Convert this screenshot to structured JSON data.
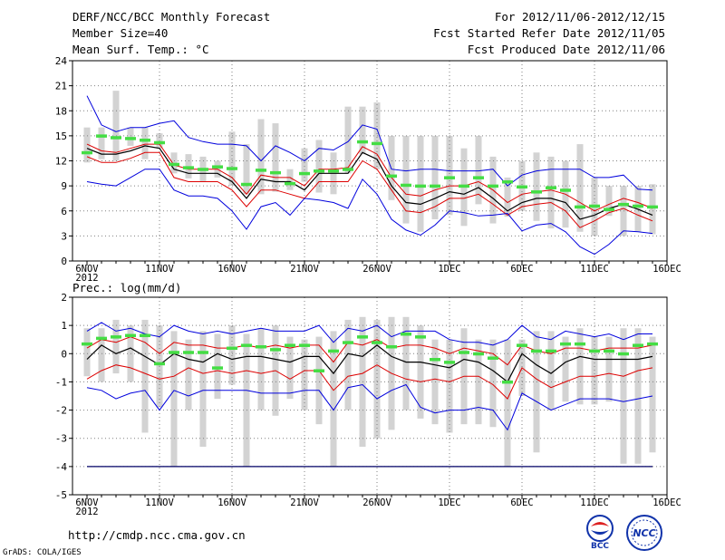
{
  "header": {
    "title": "DERF/NCC/BCC Monthly Forecast",
    "member_size": "Member Size=40",
    "variable": "Mean Surf. Temp.: °C",
    "period": "For 2012/11/06-2012/12/15",
    "started": "Fcst Started Refer Date 2012/11/05",
    "produced": "Fcst Produced Date 2012/11/06"
  },
  "footer": {
    "url": "http://cmdp.ncc.cma.gov.cn",
    "grads": "GrADS: COLA/IGES",
    "logo_left": "BCC",
    "logo_right": "NCC"
  },
  "colors": {
    "bar": "#d3d3d3",
    "obs": "#44dd44",
    "mean": "#000000",
    "inner": "#dd0000",
    "outer": "#0000dd",
    "floor": "#000066",
    "grid": "#808080"
  },
  "chart_data": [
    {
      "type": "line",
      "title": "Mean Surf. Temp.: °C",
      "ylim": [
        0,
        24
      ],
      "yticks": [
        0,
        3,
        6,
        9,
        12,
        15,
        18,
        21,
        24
      ],
      "xlabels": [
        "6NOV",
        "11NOV",
        "16NOV",
        "21NOV",
        "26NOV",
        "1DEC",
        "6DEC",
        "11DEC",
        "16DEC"
      ],
      "year_label": "2012",
      "days": 40,
      "series": [
        {
          "name": "max",
          "values": [
            19.8,
            16.3,
            15.5,
            16.0,
            16.0,
            16.5,
            16.8,
            14.8,
            14.3,
            14.0,
            14.0,
            13.8,
            12.0,
            13.8,
            13.0,
            12.0,
            13.5,
            13.3,
            14.3,
            16.3,
            15.8,
            11.0,
            10.8,
            11.0,
            11.0,
            10.8,
            10.8,
            10.8,
            11.0,
            9.0,
            10.3,
            10.8,
            11.0,
            11.0,
            11.0,
            10.0,
            10.0,
            10.3,
            8.6,
            8.5
          ]
        },
        {
          "name": "upper",
          "values": [
            14.0,
            13.2,
            13.0,
            13.5,
            14.0,
            14.0,
            11.5,
            11.0,
            11.0,
            11.0,
            10.0,
            8.0,
            10.3,
            10.0,
            10.0,
            9.0,
            11.0,
            11.0,
            11.2,
            13.7,
            12.8,
            10.0,
            8.0,
            7.8,
            8.5,
            9.0,
            9.0,
            9.5,
            8.5,
            7.0,
            8.0,
            8.3,
            8.5,
            8.0,
            7.0,
            6.0,
            6.8,
            7.5,
            7.0,
            6.3
          ]
        },
        {
          "name": "mean",
          "values": [
            13.5,
            12.8,
            12.8,
            13.2,
            13.8,
            13.5,
            11.0,
            10.5,
            10.5,
            10.5,
            9.5,
            7.5,
            9.8,
            9.5,
            9.5,
            8.5,
            10.5,
            10.5,
            10.5,
            13.0,
            12.2,
            9.0,
            7.0,
            6.8,
            7.5,
            8.3,
            8.0,
            8.8,
            7.5,
            6.0,
            7.0,
            7.5,
            7.5,
            7.0,
            5.0,
            5.5,
            6.3,
            6.8,
            6.2,
            5.5
          ]
        },
        {
          "name": "lower",
          "values": [
            12.5,
            11.8,
            11.8,
            12.3,
            13.0,
            13.0,
            10.0,
            9.5,
            9.5,
            9.5,
            8.5,
            6.5,
            8.5,
            8.5,
            8.0,
            7.5,
            9.5,
            9.5,
            9.5,
            12.0,
            11.0,
            8.5,
            6.0,
            5.8,
            6.5,
            7.5,
            7.5,
            8.0,
            6.8,
            5.5,
            6.5,
            6.8,
            7.0,
            6.0,
            4.0,
            4.8,
            5.8,
            6.3,
            5.5,
            4.8
          ]
        },
        {
          "name": "min",
          "values": [
            9.5,
            9.2,
            9.0,
            10.0,
            11.0,
            11.0,
            8.5,
            7.8,
            7.8,
            7.5,
            6.0,
            3.8,
            6.5,
            7.0,
            5.5,
            7.5,
            7.3,
            7.0,
            6.3,
            9.8,
            8.0,
            5.0,
            3.7,
            3.1,
            4.3,
            6.0,
            5.8,
            5.4,
            5.5,
            5.7,
            3.6,
            4.3,
            4.5,
            3.5,
            1.7,
            0.8,
            2.0,
            3.6,
            3.5,
            3.3
          ]
        },
        {
          "name": "observed",
          "values": [
            13.0,
            15.0,
            14.8,
            14.7,
            14.5,
            14.2,
            11.6,
            11.2,
            11.0,
            11.3,
            11.1,
            9.2,
            10.9,
            10.6,
            9.3,
            10.5,
            10.8,
            10.8,
            11.0,
            14.3,
            14.1,
            10.2,
            9.1,
            9.0,
            9.0,
            10.0,
            9.0,
            10.0,
            9.0,
            9.5,
            8.9,
            8.3,
            8.8,
            8.5,
            6.5,
            6.6,
            6.2,
            6.8,
            6.6,
            6.5
          ]
        }
      ],
      "bars": {
        "bottom": [
          11.8,
          12.2,
          12.0,
          13.8,
          12.2,
          13.5,
          10.5,
          9.9,
          9.5,
          10.0,
          9.0,
          8.0,
          8.0,
          8.3,
          8.5,
          9.5,
          8.2,
          8.0,
          10.5,
          12.8,
          11.0,
          7.3,
          4.5,
          3.5,
          5.0,
          5.5,
          4.2,
          6.8,
          4.5,
          5.3,
          6.0,
          4.8,
          3.9,
          4.0,
          3.5,
          3.0,
          5.4,
          3.0,
          3.5,
          3.2
        ],
        "top": [
          16.0,
          16.0,
          20.4,
          16.0,
          16.0,
          15.3,
          13.0,
          12.8,
          12.5,
          12.0,
          15.5,
          14.0,
          17.0,
          16.5,
          11.0,
          13.5,
          14.5,
          13.0,
          18.5,
          18.5,
          19.0,
          15.0,
          15.0,
          15.0,
          15.0,
          15.0,
          13.5,
          15.0,
          12.5,
          10.0,
          12.0,
          13.0,
          12.5,
          12.0,
          14.0,
          10.0,
          9.0,
          9.0,
          9.0,
          9.2
        ]
      }
    },
    {
      "type": "line",
      "title": "Prec.: log(mm/d)",
      "ylim": [
        -5,
        2
      ],
      "yticks": [
        -5,
        -4,
        -3,
        -2,
        -1,
        0,
        1,
        2
      ],
      "xlabels": [
        "6NOV",
        "11NOV",
        "16NOV",
        "21NOV",
        "26NOV",
        "1DEC",
        "6DEC",
        "11DEC",
        "16DEC"
      ],
      "year_label": "2012",
      "days": 40,
      "series": [
        {
          "name": "max",
          "values": [
            0.8,
            1.1,
            0.8,
            0.9,
            0.7,
            0.6,
            1.0,
            0.8,
            0.7,
            0.8,
            0.7,
            0.8,
            0.9,
            0.8,
            0.8,
            0.8,
            1.0,
            0.4,
            0.9,
            0.8,
            1.0,
            0.6,
            0.8,
            0.8,
            0.8,
            0.5,
            0.4,
            0.4,
            0.3,
            0.5,
            1.0,
            0.6,
            0.5,
            0.8,
            0.7,
            0.6,
            0.7,
            0.5,
            0.7,
            0.7
          ]
        },
        {
          "name": "upper",
          "values": [
            0.2,
            0.5,
            0.4,
            0.6,
            0.4,
            0.0,
            0.4,
            0.3,
            0.3,
            0.2,
            0.2,
            0.3,
            0.2,
            0.3,
            0.2,
            0.3,
            0.3,
            -0.3,
            0.4,
            0.3,
            0.5,
            0.2,
            0.3,
            0.3,
            0.2,
            0.0,
            0.2,
            0.1,
            0.0,
            -0.4,
            0.3,
            0.1,
            0.0,
            0.2,
            0.2,
            0.1,
            0.2,
            0.2,
            0.2,
            0.3
          ]
        },
        {
          "name": "mean",
          "values": [
            -0.2,
            0.3,
            0.0,
            0.2,
            -0.1,
            -0.4,
            0.0,
            -0.2,
            -0.3,
            0.0,
            -0.2,
            -0.1,
            -0.1,
            -0.2,
            -0.3,
            -0.1,
            -0.1,
            -0.7,
            0.0,
            -0.1,
            0.3,
            -0.1,
            -0.3,
            -0.3,
            -0.4,
            -0.5,
            -0.2,
            -0.3,
            -0.6,
            -1.0,
            0.0,
            -0.4,
            -0.7,
            -0.3,
            -0.1,
            -0.2,
            -0.2,
            -0.2,
            -0.2,
            -0.1
          ]
        },
        {
          "name": "lower",
          "values": [
            -0.9,
            -0.6,
            -0.4,
            -0.5,
            -0.7,
            -0.9,
            -0.8,
            -0.5,
            -0.7,
            -0.6,
            -0.7,
            -0.6,
            -0.7,
            -0.6,
            -0.9,
            -0.6,
            -0.6,
            -1.3,
            -0.8,
            -0.7,
            -0.4,
            -0.7,
            -0.9,
            -1.0,
            -0.9,
            -1.0,
            -0.8,
            -0.8,
            -1.1,
            -1.6,
            -0.5,
            -0.9,
            -1.2,
            -1.0,
            -0.8,
            -0.8,
            -0.7,
            -0.8,
            -0.6,
            -0.5
          ]
        },
        {
          "name": "min",
          "values": [
            -1.2,
            -1.3,
            -1.6,
            -1.4,
            -1.3,
            -2.0,
            -1.3,
            -1.5,
            -1.3,
            -1.3,
            -1.3,
            -1.3,
            -1.4,
            -1.4,
            -1.4,
            -1.3,
            -1.3,
            -2.0,
            -1.2,
            -1.1,
            -1.6,
            -1.3,
            -1.1,
            -1.9,
            -2.1,
            -2.0,
            -2.0,
            -1.9,
            -2.0,
            -2.7,
            -1.4,
            -1.7,
            -2.0,
            -1.8,
            -1.6,
            -1.6,
            -1.6,
            -1.7,
            -1.6,
            -1.5
          ]
        },
        {
          "name": "observed",
          "values": [
            0.35,
            0.55,
            0.6,
            0.65,
            0.65,
            -0.35,
            0.05,
            0.05,
            0.05,
            -0.5,
            0.2,
            0.3,
            0.25,
            0.15,
            0.3,
            0.3,
            -0.6,
            0.1,
            0.4,
            0.6,
            0.4,
            0.25,
            0.7,
            0.6,
            -0.2,
            -0.3,
            0.05,
            0.0,
            -0.15,
            -1.0,
            0.3,
            0.1,
            0.1,
            0.35,
            0.35,
            0.1,
            0.1,
            0.0,
            0.3,
            0.35
          ]
        },
        {
          "name": "floor",
          "values": [
            -4.0,
            -4.0,
            -4.0,
            -4.0,
            -4.0,
            -4.0,
            -4.0,
            -4.0,
            -4.0,
            -4.0,
            -4.0,
            -4.0,
            -4.0,
            -4.0,
            -4.0,
            -4.0,
            -4.0,
            -4.0,
            -4.0,
            -4.0,
            -4.0,
            -4.0,
            -4.0,
            -4.0,
            -4.0,
            -4.0,
            -4.0,
            -4.0,
            -4.0,
            -4.0,
            -4.0,
            -4.0,
            -4.0,
            -4.0,
            -4.0,
            -4.0,
            -4.0,
            -4.0,
            -4.0,
            -4.0
          ]
        }
      ],
      "bars": {
        "bottom": [
          -0.8,
          -1.0,
          -0.7,
          -1.0,
          -2.8,
          -1.9,
          -4.0,
          -2.0,
          -3.3,
          -1.6,
          -1.1,
          -4.0,
          -2.0,
          -2.2,
          -1.6,
          -2.0,
          -2.5,
          -4.0,
          -2.0,
          -3.3,
          -3.0,
          -2.7,
          -2.0,
          -2.3,
          -2.5,
          -2.8,
          -2.5,
          -2.5,
          -2.6,
          -4.0,
          -1.5,
          -3.5,
          -2.0,
          -1.7,
          -1.8,
          -1.8,
          -1.7,
          -3.9,
          -3.9,
          -3.5
        ],
        "top": [
          0.9,
          0.9,
          1.2,
          1.0,
          1.2,
          1.0,
          0.8,
          0.5,
          0.8,
          0.7,
          1.0,
          0.7,
          0.9,
          1.0,
          0.6,
          0.5,
          0.6,
          0.8,
          1.2,
          1.3,
          1.2,
          1.3,
          1.3,
          1.0,
          0.5,
          0.5,
          0.9,
          0.5,
          0.5,
          0.5,
          0.5,
          0.8,
          0.8,
          0.6,
          0.9,
          0.6,
          0.6,
          0.9,
          0.9,
          0.6
        ]
      }
    }
  ]
}
